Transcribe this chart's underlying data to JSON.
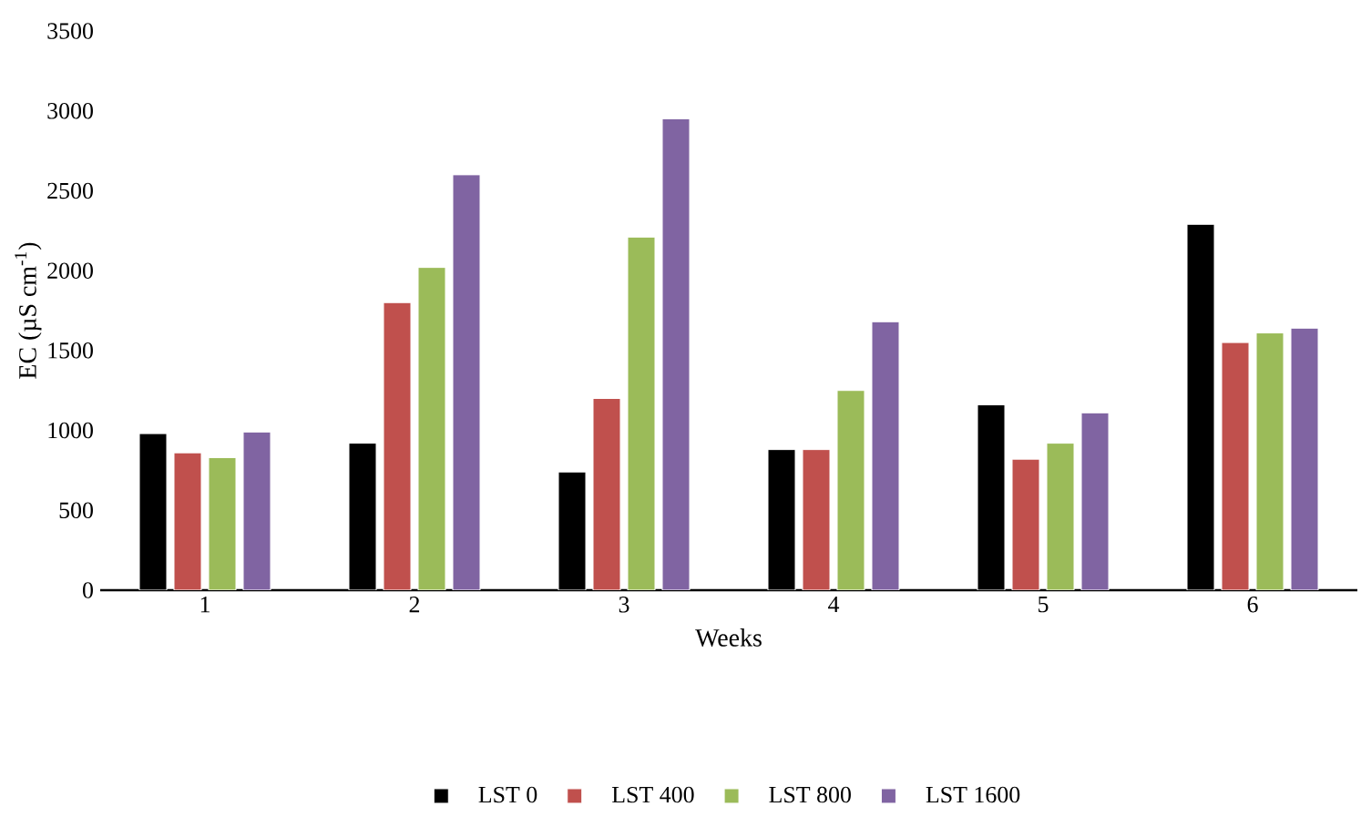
{
  "chart_data": {
    "type": "bar",
    "xlabel": "Weeks",
    "ylabel": "EC (µS cm$^{-1}$)",
    "categories": [
      "1",
      "2",
      "3",
      "4",
      "5",
      "6"
    ],
    "series": [
      {
        "name": "LST 0",
        "color": "#000000",
        "values": [
          980,
          920,
          740,
          880,
          1160,
          2290
        ]
      },
      {
        "name": "LST 400",
        "color": "#c0504d",
        "values": [
          860,
          1800,
          1200,
          880,
          820,
          1550
        ]
      },
      {
        "name": "LST 800",
        "color": "#9bbb59",
        "values": [
          830,
          2020,
          2210,
          1250,
          920,
          1610
        ]
      },
      {
        "name": "LST 1600",
        "color": "#8064a2",
        "values": [
          990,
          2600,
          2950,
          1680,
          1110,
          1640
        ]
      }
    ],
    "ylim": [
      0,
      3500
    ],
    "yticks": [
      0,
      500,
      1000,
      1500,
      2000,
      2500,
      3000,
      3500
    ],
    "legend": "bottom",
    "grid": false
  }
}
